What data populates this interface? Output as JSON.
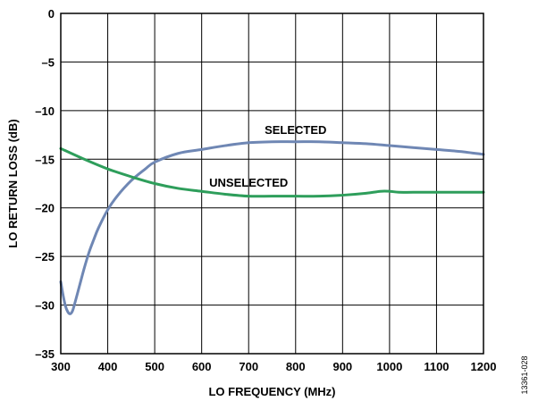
{
  "chart_data": {
    "type": "line",
    "xlabel": "LO FREQUENCY (MHz)",
    "ylabel": "LO RETURN LOSS (dB)",
    "xlim": [
      300,
      1200
    ],
    "ylim": [
      -35,
      0
    ],
    "x_ticks": [
      300,
      400,
      500,
      600,
      700,
      800,
      900,
      1000,
      1100,
      1200
    ],
    "y_ticks": [
      0,
      -5,
      -10,
      -15,
      -20,
      -25,
      -30,
      -35
    ],
    "x_tick_labels": [
      "300",
      "400",
      "500",
      "600",
      "700",
      "800",
      "900",
      "1000",
      "1100",
      "1200"
    ],
    "y_tick_labels": [
      "0",
      "–5",
      "–10",
      "–15",
      "–20",
      "–25",
      "–30",
      "–35"
    ],
    "grid": true,
    "series": [
      {
        "name": "SELECTED",
        "color": "#6f87b4",
        "x": [
          300,
          305,
          310,
          315,
          320,
          325,
          330,
          340,
          350,
          360,
          370,
          380,
          400,
          420,
          450,
          480,
          500,
          550,
          600,
          650,
          700,
          750,
          800,
          850,
          900,
          950,
          1000,
          1050,
          1100,
          1150,
          1200
        ],
        "y": [
          -27.6,
          -29.0,
          -30.1,
          -30.7,
          -30.9,
          -30.6,
          -29.8,
          -28.0,
          -26.2,
          -24.6,
          -23.3,
          -22.1,
          -20.2,
          -18.8,
          -17.2,
          -16.0,
          -15.3,
          -14.4,
          -14.0,
          -13.6,
          -13.3,
          -13.2,
          -13.2,
          -13.2,
          -13.3,
          -13.4,
          -13.6,
          -13.8,
          -14.0,
          -14.2,
          -14.5
        ]
      },
      {
        "name": "UNSELECTED",
        "color": "#2e9e5b",
        "x": [
          300,
          350,
          400,
          450,
          500,
          550,
          600,
          650,
          700,
          750,
          800,
          850,
          900,
          950,
          980,
          1000,
          1020,
          1050,
          1100,
          1150,
          1200
        ],
        "y": [
          -13.9,
          -15.0,
          -16.0,
          -16.8,
          -17.5,
          -18.0,
          -18.3,
          -18.6,
          -18.8,
          -18.8,
          -18.8,
          -18.8,
          -18.7,
          -18.5,
          -18.3,
          -18.3,
          -18.4,
          -18.4,
          -18.4,
          -18.4,
          -18.4
        ]
      }
    ],
    "annotations": [
      {
        "text": "SELECTED",
        "x": 800,
        "y": -12.4
      },
      {
        "text": "UNSELECTED",
        "x": 700,
        "y": -17.8
      }
    ],
    "figure_id": "13361-028"
  }
}
